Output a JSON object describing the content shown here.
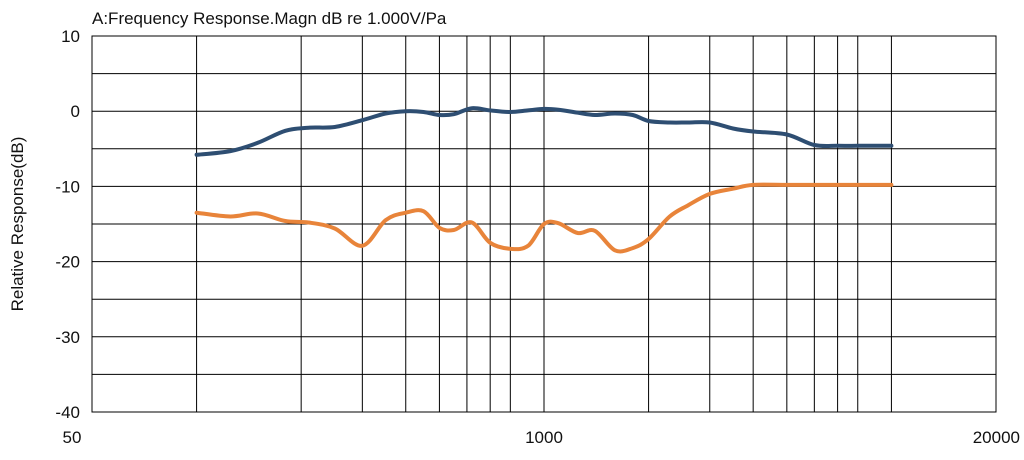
{
  "chart_data": {
    "type": "line",
    "title": "A:Frequency Response.Magn dB re 1.000V/Pa",
    "xlabel": "",
    "ylabel": "Relative Response(dB)",
    "xscale": "log",
    "xlim": [
      50,
      20000
    ],
    "ylim": [
      -40,
      10
    ],
    "x_ticks": [
      50,
      1000,
      20000
    ],
    "x_tick_labels": [
      "50",
      "1000",
      "20000"
    ],
    "y_ticks": [
      10,
      0,
      -10,
      -20,
      -30,
      -40
    ],
    "y_tick_labels": [
      "10",
      "0",
      "-10",
      "-20",
      "-30",
      "-40"
    ],
    "x_gridlines": [
      100,
      200,
      300,
      400,
      500,
      600,
      700,
      800,
      1000,
      2000,
      3000,
      4000,
      5000,
      6000,
      7000,
      8000,
      10000,
      20000
    ],
    "y_gridlines": [
      10,
      5,
      0,
      -5,
      -10,
      -15,
      -20,
      -25,
      -30,
      -35,
      -40
    ],
    "grid": true,
    "legend": "none",
    "series": [
      {
        "color": "#2e4e72",
        "x": [
          100,
          125,
          150,
          180,
          210,
          250,
          300,
          350,
          400,
          450,
          500,
          550,
          620,
          700,
          800,
          900,
          1000,
          1100,
          1250,
          1400,
          1600,
          1800,
          2000,
          2300,
          2600,
          3000,
          3500,
          4000,
          5000,
          6000,
          7000,
          8000,
          9000,
          10000
        ],
        "y": [
          -5.8,
          -5.3,
          -4.2,
          -2.6,
          -2.2,
          -2.1,
          -1.2,
          -0.3,
          0,
          -0.1,
          -0.5,
          -0.4,
          0.4,
          0.1,
          -0.1,
          0.1,
          0.3,
          0.2,
          -0.2,
          -0.5,
          -0.3,
          -0.5,
          -1.3,
          -1.5,
          -1.5,
          -1.5,
          -2.3,
          -2.7,
          -3.1,
          -4.5,
          -4.6,
          -4.6,
          -4.6,
          -4.6
        ]
      },
      {
        "color": "#e8843a",
        "x": [
          100,
          125,
          150,
          180,
          210,
          250,
          300,
          350,
          400,
          450,
          500,
          550,
          620,
          700,
          800,
          900,
          1000,
          1100,
          1250,
          1400,
          1600,
          1800,
          2000,
          2300,
          2600,
          3000,
          3500,
          4000,
          5000,
          6000,
          7000,
          8000,
          9000,
          10000
        ],
        "y": [
          -13.5,
          -14,
          -13.6,
          -14.6,
          -14.8,
          -15.6,
          -17.9,
          -14.5,
          -13.5,
          -13.3,
          -15.5,
          -15.8,
          -14.8,
          -17.5,
          -18.3,
          -17.9,
          -15,
          -14.9,
          -16.2,
          -15.9,
          -18.5,
          -18.2,
          -17,
          -14,
          -12.5,
          -11,
          -10.3,
          -9.8,
          -9.8,
          -9.8,
          -9.8,
          -9.8,
          -9.8,
          -9.8
        ]
      }
    ]
  }
}
